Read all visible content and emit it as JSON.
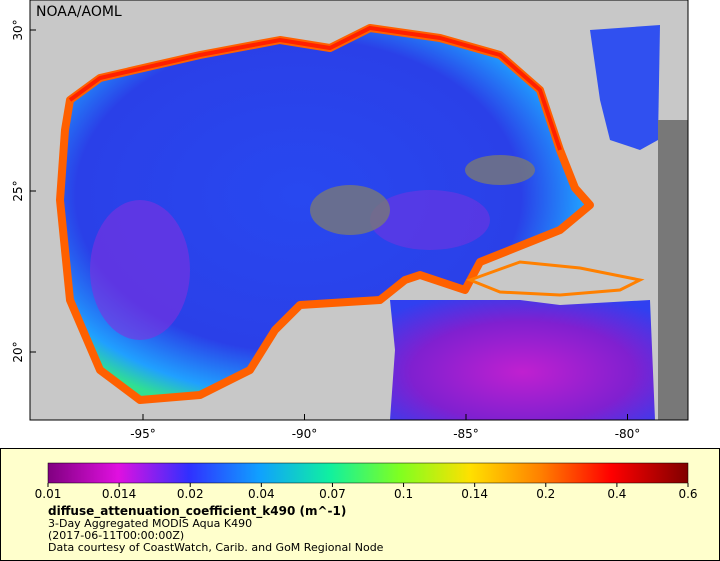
{
  "map": {
    "credit": "NOAA/AOML",
    "lat_labels": [
      "30°",
      "25°",
      "20°"
    ],
    "lon_labels": [
      "-95°",
      "-90°",
      "-85°",
      "-80°"
    ]
  },
  "colorbar": {
    "tick_labels": [
      "0.01",
      "0.014",
      "0.02",
      "0.04",
      "0.07",
      "0.1",
      "0.14",
      "0.2",
      "0.4",
      "0.6"
    ]
  },
  "caption": {
    "variable": "diffuse_attenuation_coefficient_k490 (m^-1)",
    "dataset": "3-Day Aggregated MODIS Aqua K490",
    "time": "(2017-06-11T00:00:00Z)",
    "source": "Data courtesy of CoastWatch, Carib. and GoM Regional Node"
  }
}
